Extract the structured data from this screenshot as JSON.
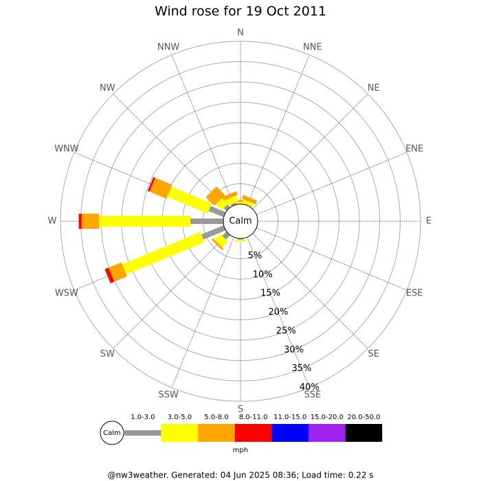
{
  "chart_data": {
    "type": "wind_rose",
    "title": "Wind rose for 19 Oct 2011",
    "calm_label": "Calm",
    "directions": [
      "N",
      "NNE",
      "NE",
      "ENE",
      "E",
      "ESE",
      "SE",
      "SSE",
      "S",
      "SSW",
      "SW",
      "WSW",
      "W",
      "WNW",
      "NW",
      "NNW"
    ],
    "rlim": [
      0,
      40
    ],
    "rticks": [
      {
        "value": 5,
        "label": "5%"
      },
      {
        "value": 10,
        "label": "10%"
      },
      {
        "value": 15,
        "label": "15%"
      },
      {
        "value": 20,
        "label": "20%"
      },
      {
        "value": 25,
        "label": "25%"
      },
      {
        "value": 30,
        "label": "30%"
      },
      {
        "value": 35,
        "label": "35%"
      },
      {
        "value": 40,
        "label": "40%"
      }
    ],
    "series": [
      {
        "name": "1.0-3.0",
        "color": "#999999",
        "values": [
          0,
          0,
          0,
          0,
          0,
          0,
          0,
          0,
          0.3,
          0,
          1.5,
          5.9,
          8.1,
          4.0,
          1.0,
          0.5
        ]
      },
      {
        "name": "3.0-5.0",
        "color": "#ffff00",
        "values": [
          0.5,
          1.0,
          0,
          0,
          0,
          0,
          0,
          0,
          0.4,
          0,
          2.0,
          20.8,
          22.4,
          10.7,
          2.0,
          1.5
        ]
      },
      {
        "name": "5.0-8.0",
        "color": "#ffa500",
        "values": [
          0.5,
          1.0,
          0,
          0,
          0,
          0,
          0,
          0,
          0,
          0,
          0.5,
          3.4,
          4.3,
          4.5,
          3.0,
          1.0
        ]
      },
      {
        "name": "8.0-11.0",
        "color": "#ff0000",
        "values": [
          0,
          0,
          0,
          0,
          0,
          0,
          0,
          0,
          0,
          0,
          0,
          1.0,
          0.7,
          0.5,
          0,
          0
        ]
      },
      {
        "name": "11.0-15.0",
        "color": "#0000ff",
        "values": [
          0,
          0,
          0,
          0,
          0,
          0,
          0,
          0,
          0,
          0,
          0,
          0,
          0,
          0,
          0,
          0
        ]
      },
      {
        "name": "15.0-20.0",
        "color": "#a020f0",
        "values": [
          0,
          0,
          0,
          0,
          0,
          0,
          0,
          0,
          0,
          0,
          0,
          0,
          0,
          0,
          0,
          0
        ]
      },
      {
        "name": "20.0-50.0",
        "color": "#000000",
        "values": [
          0,
          0,
          0,
          0,
          0,
          0,
          0,
          0,
          0,
          0,
          0,
          0,
          0,
          0,
          0,
          0
        ]
      }
    ],
    "legend_unit": "mph",
    "footer": "@nw3weather. Generated: 04 Jun 2025 08:36; Load time: 0.22 s"
  }
}
